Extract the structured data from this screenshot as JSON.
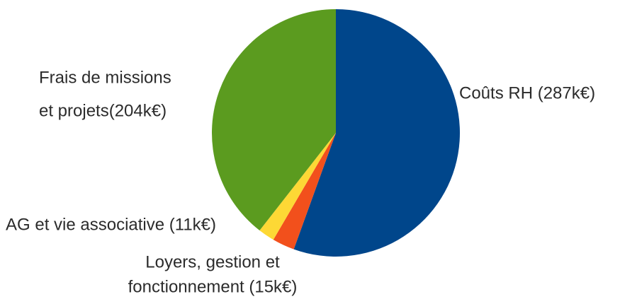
{
  "chart_data": {
    "type": "pie",
    "categories": [
      [
        "Coûts RH (287k€)"
      ],
      [
        "Loyers, gestion et",
        "fonctionnement (15k€)"
      ],
      [
        "AG et vie associative (11k€)"
      ],
      [
        "Frais de missions",
        "et projets(204k€)"
      ]
    ],
    "values": [
      287,
      15,
      11,
      204
    ],
    "colors": [
      "#00468b",
      "#f2501c",
      "#fdd835",
      "#5b9b1f"
    ]
  }
}
